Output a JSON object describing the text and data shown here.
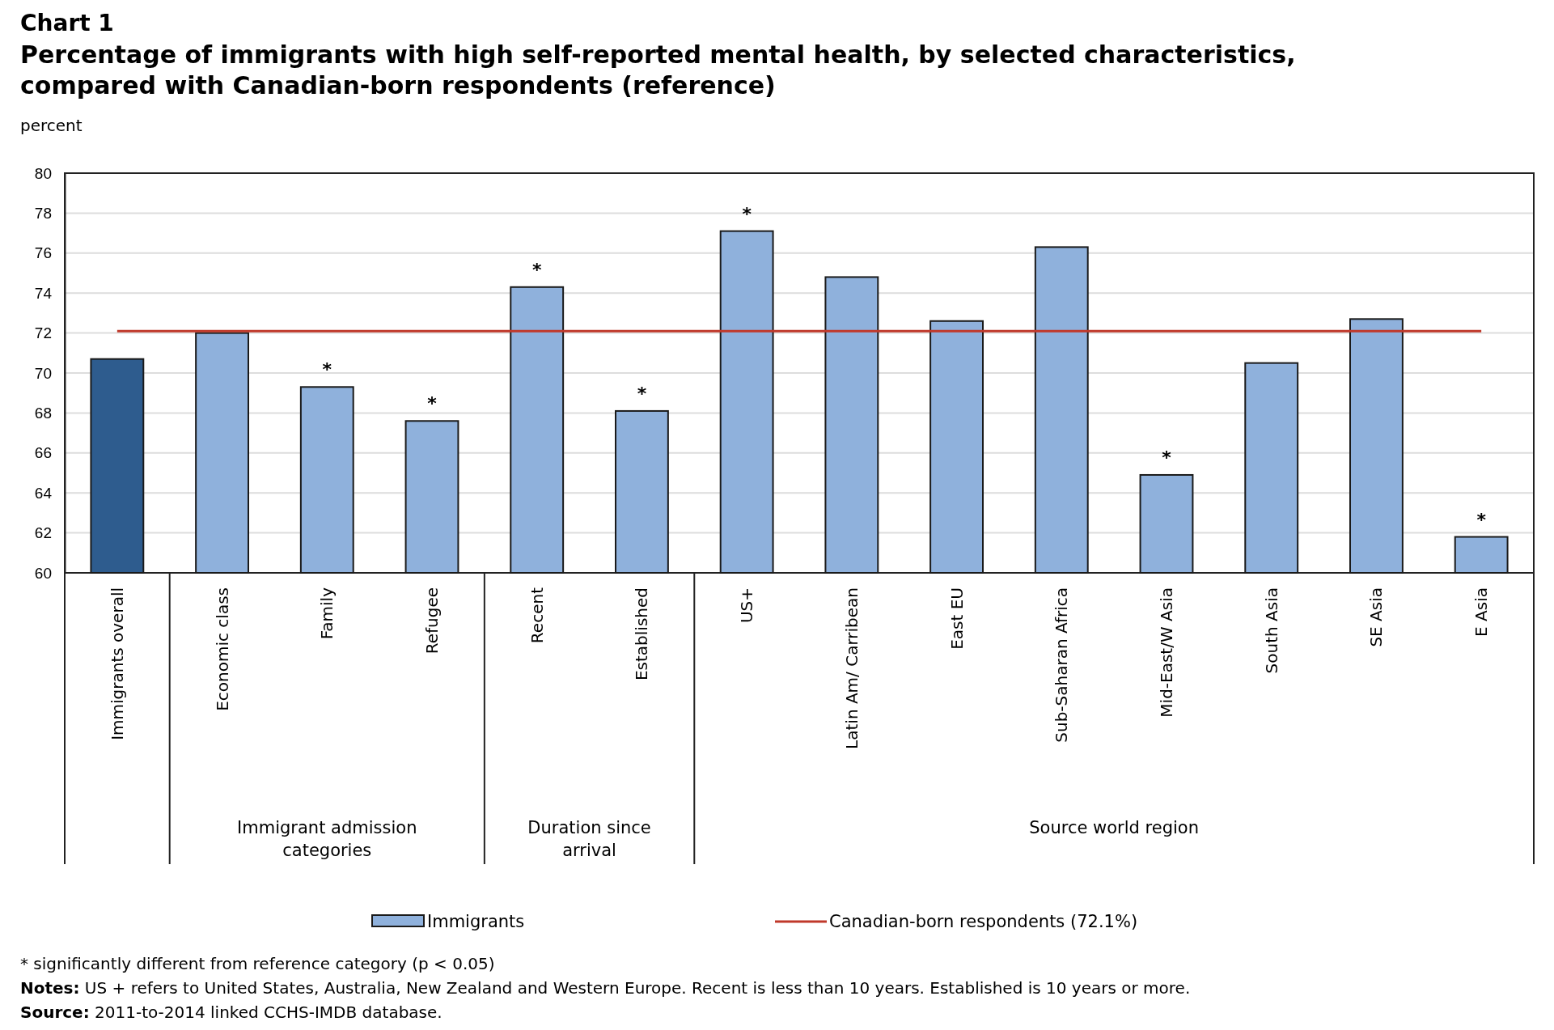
{
  "chart_data": {
    "type": "bar",
    "title": "Chart 1",
    "subtitle": "Percentage of immigrants with high self-reported mental health, by selected characteristics, compared with Canadian-born respondents (reference)",
    "ylabel": "percent",
    "categories": [
      "Immigrants overall",
      "Economic class",
      "Family",
      "Refugee",
      "Recent",
      "Established",
      "US+",
      "Latin Am/ Carribean",
      "East EU",
      "Sub-Saharan Africa",
      "Mid-East/W Asia",
      "South Asia",
      "SE Asia",
      "E Asia"
    ],
    "series": [
      {
        "name": "Immigrants",
        "color": "#8fb1dc",
        "colors": [
          "#2e5c8e",
          "#8fb1dc",
          "#8fb1dc",
          "#8fb1dc",
          "#8fb1dc",
          "#8fb1dc",
          "#8fb1dc",
          "#8fb1dc",
          "#8fb1dc",
          "#8fb1dc",
          "#8fb1dc",
          "#8fb1dc",
          "#8fb1dc",
          "#8fb1dc"
        ],
        "values": [
          70.7,
          72.0,
          69.3,
          67.6,
          74.3,
          68.1,
          77.1,
          74.8,
          72.6,
          76.3,
          64.9,
          70.5,
          72.7,
          61.8
        ]
      }
    ],
    "ylim": [
      60,
      80
    ],
    "yticks": [
      60,
      62,
      64,
      66,
      68,
      70,
      72,
      74,
      76,
      78,
      80
    ],
    "grid": "y",
    "legend": "bottom",
    "ref_lines": [
      {
        "axis": "y",
        "value": 72.1,
        "label": "Canadian-born respondents (72.1%)",
        "color": "#c0392b"
      }
    ],
    "annotations": [
      {
        "text": "*",
        "x": "Family",
        "y": 69.3
      },
      {
        "text": "*",
        "x": "Refugee",
        "y": 67.6
      },
      {
        "text": "*",
        "x": "Recent",
        "y": 74.3
      },
      {
        "text": "*",
        "x": "Established",
        "y": 68.1
      },
      {
        "text": "*",
        "x": "US+",
        "y": 77.1
      },
      {
        "text": "*",
        "x": "Mid-East/W Asia",
        "y": 64.9
      },
      {
        "text": "*",
        "x": "E Asia",
        "y": 61.8
      },
      "Immigrant admission categories",
      "Duration since arrival",
      "Source world region",
      "* significantly different from reference category (p < 0.05)",
      "Notes: US + refers to United States, Australia, New Zealand and Western Europe. Recent is less than 10 years. Established is 10 years or more.",
      "Source: 2011-to-2014 linked CCHS-IMDB database."
    ]
  }
}
